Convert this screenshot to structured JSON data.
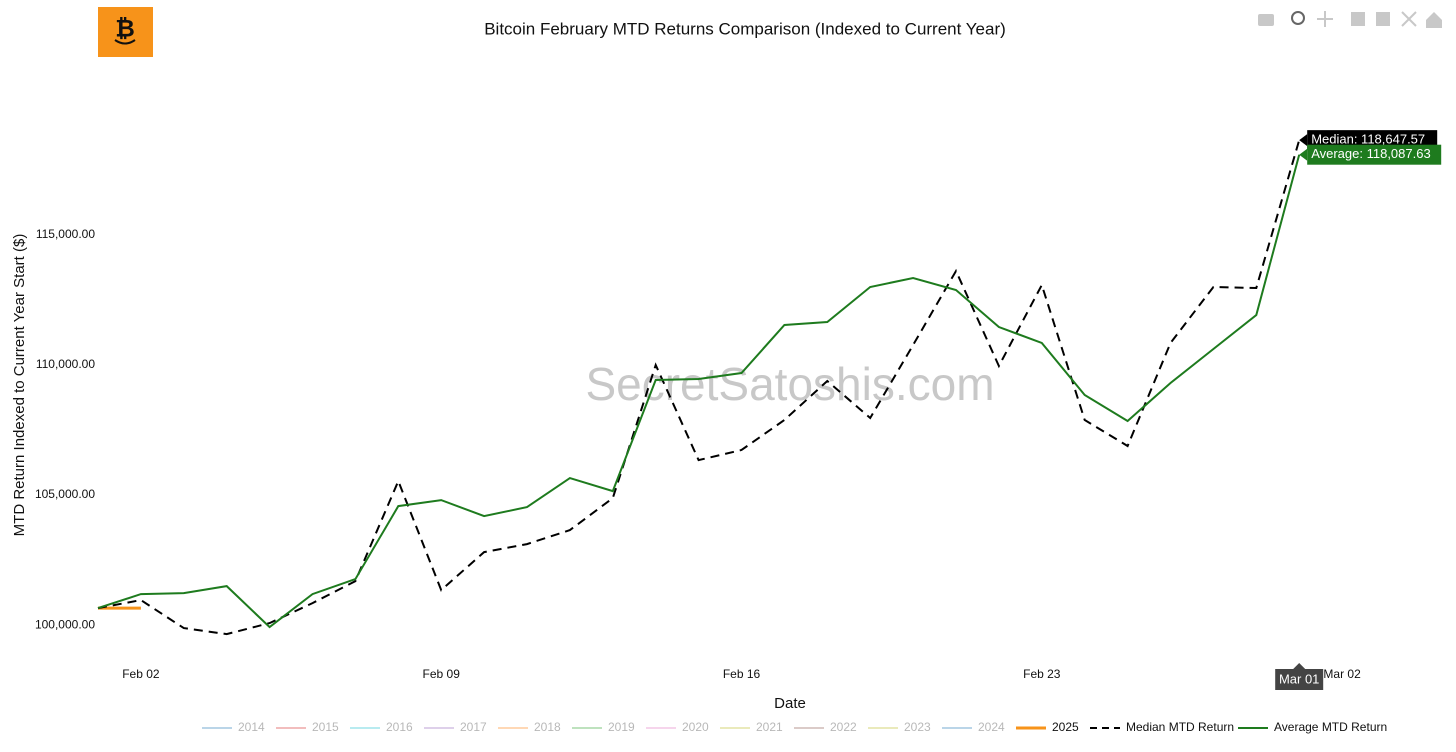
{
  "chart_data": {
    "type": "line",
    "title": "Bitcoin February MTD Returns Comparison (Indexed to Current Year)",
    "xlabel": "Date",
    "ylabel": "MTD Return Indexed to Current Year Start ($)",
    "watermark": "SecretSatoshis.com",
    "categories": [
      null,
      "Feb 02",
      null,
      null,
      null,
      null,
      null,
      null,
      "Feb 09",
      null,
      null,
      null,
      null,
      null,
      null,
      "Feb 16",
      null,
      null,
      null,
      null,
      null,
      null,
      "Feb 23",
      null,
      null,
      null,
      null,
      null,
      null,
      "Mar 02"
    ],
    "x_hover_label": "Mar 01",
    "x_hover_index": 28,
    "ylim": [
      98850,
      120960
    ],
    "yticks": [
      {
        "value": 100000,
        "label": "100,000.00"
      },
      {
        "value": 105000,
        "label": "105,000.00"
      },
      {
        "value": 110000,
        "label": "110,000.00"
      },
      {
        "value": 115000,
        "label": "115,000.00"
      }
    ],
    "grid": false,
    "legend_position": "bottom",
    "legend_only": [
      {
        "name": "2014",
        "color": "#1f77b4"
      },
      {
        "name": "2015",
        "color": "#d62728"
      },
      {
        "name": "2016",
        "color": "#17becf"
      },
      {
        "name": "2017",
        "color": "#9467bd"
      },
      {
        "name": "2018",
        "color": "#ff7f0e"
      },
      {
        "name": "2019",
        "color": "#2ca02c"
      },
      {
        "name": "2020",
        "color": "#e377c2"
      },
      {
        "name": "2021",
        "color": "#bcbd22"
      },
      {
        "name": "2022",
        "color": "#8c564b"
      },
      {
        "name": "2023",
        "color": "#bcbd22"
      },
      {
        "name": "2024",
        "color": "#1f77b4"
      }
    ],
    "series": [
      {
        "name": "2025",
        "color": "#f7931a",
        "dash": false,
        "width": 3,
        "values": [
          100654,
          100654,
          null,
          null,
          null,
          null,
          null,
          null,
          null,
          null,
          null,
          null,
          null,
          null,
          null,
          null,
          null,
          null,
          null,
          null,
          null,
          null,
          null,
          null,
          null,
          null,
          null,
          null,
          null,
          null
        ]
      },
      {
        "name": "Median MTD Return",
        "color": "#000000",
        "dash": true,
        "width": 2,
        "values": [
          100654,
          100960,
          99885,
          99654,
          100077,
          100846,
          101692,
          105538,
          101346,
          102808,
          103115,
          103654,
          104885,
          110000,
          106346,
          106731,
          107885,
          109385,
          107962,
          110769,
          113615,
          109962,
          113077,
          107885,
          106885,
          110846,
          113000,
          112962,
          118647.57,
          null
        ],
        "value_labels": [
          null,
          null,
          null,
          null,
          null,
          null,
          null,
          null,
          null,
          null,
          null,
          null,
          null,
          null,
          null,
          null,
          null,
          null,
          null,
          null,
          null,
          null,
          null,
          null,
          null,
          null,
          null,
          null,
          "Median: 118,647.57",
          null
        ]
      },
      {
        "name": "Average MTD Return",
        "color": "#1e7b1e",
        "dash": false,
        "width": 2,
        "values": [
          100654,
          101192,
          101231,
          101500,
          99923,
          101192,
          101769,
          104577,
          104808,
          104192,
          104538,
          105654,
          105154,
          109423,
          109462,
          109692,
          111538,
          111654,
          113000,
          113346,
          112885,
          111462,
          110846,
          108846,
          107846,
          109308,
          110615,
          111923,
          118087.63,
          null
        ],
        "value_labels": [
          null,
          null,
          null,
          null,
          null,
          null,
          null,
          null,
          null,
          null,
          null,
          null,
          null,
          null,
          null,
          null,
          null,
          null,
          null,
          null,
          null,
          null,
          null,
          null,
          null,
          null,
          null,
          null,
          "Average: 118,087.63",
          null
        ]
      }
    ]
  }
}
